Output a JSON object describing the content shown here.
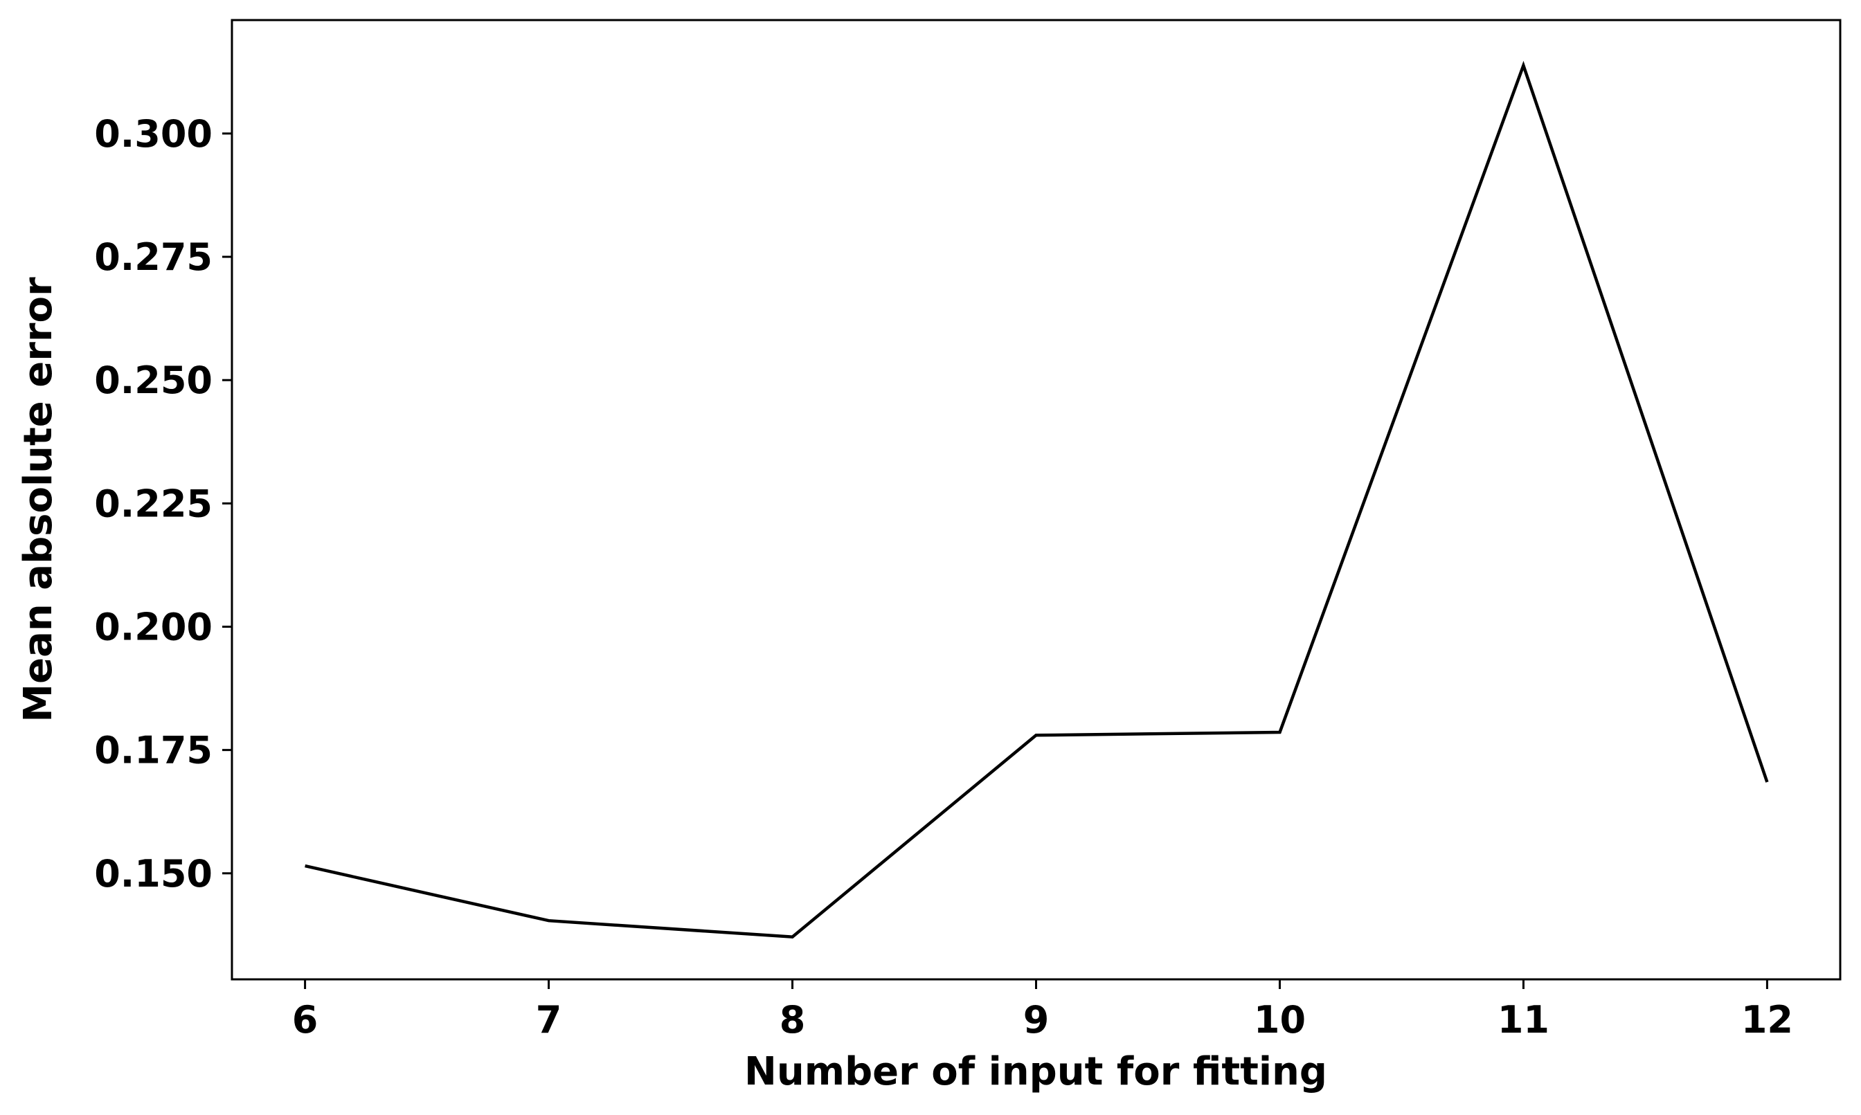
{
  "chart_data": {
    "type": "line",
    "title": "",
    "xlabel": "Number of input for fitting",
    "ylabel": "Mean absolute error",
    "x": [
      6,
      7,
      8,
      9,
      10,
      11,
      12
    ],
    "series": [
      {
        "values": [
          0.1515,
          0.1404,
          0.1371,
          0.178,
          0.1786,
          0.3138,
          0.1685
        ]
      }
    ],
    "xlim": [
      5.7,
      12.3
    ],
    "ylim": [
      0.1285,
      0.323
    ],
    "xticks": [
      6,
      7,
      8,
      9,
      10,
      11,
      12
    ],
    "xtick_labels": [
      "6",
      "7",
      "8",
      "9",
      "10",
      "11",
      "12"
    ],
    "yticks": [
      0.15,
      0.175,
      0.2,
      0.225,
      0.25,
      0.275,
      0.3
    ],
    "ytick_labels": [
      "0.150",
      "0.175",
      "0.200",
      "0.225",
      "0.250",
      "0.275",
      "0.300"
    ],
    "grid": false,
    "line_color": "#000000"
  }
}
